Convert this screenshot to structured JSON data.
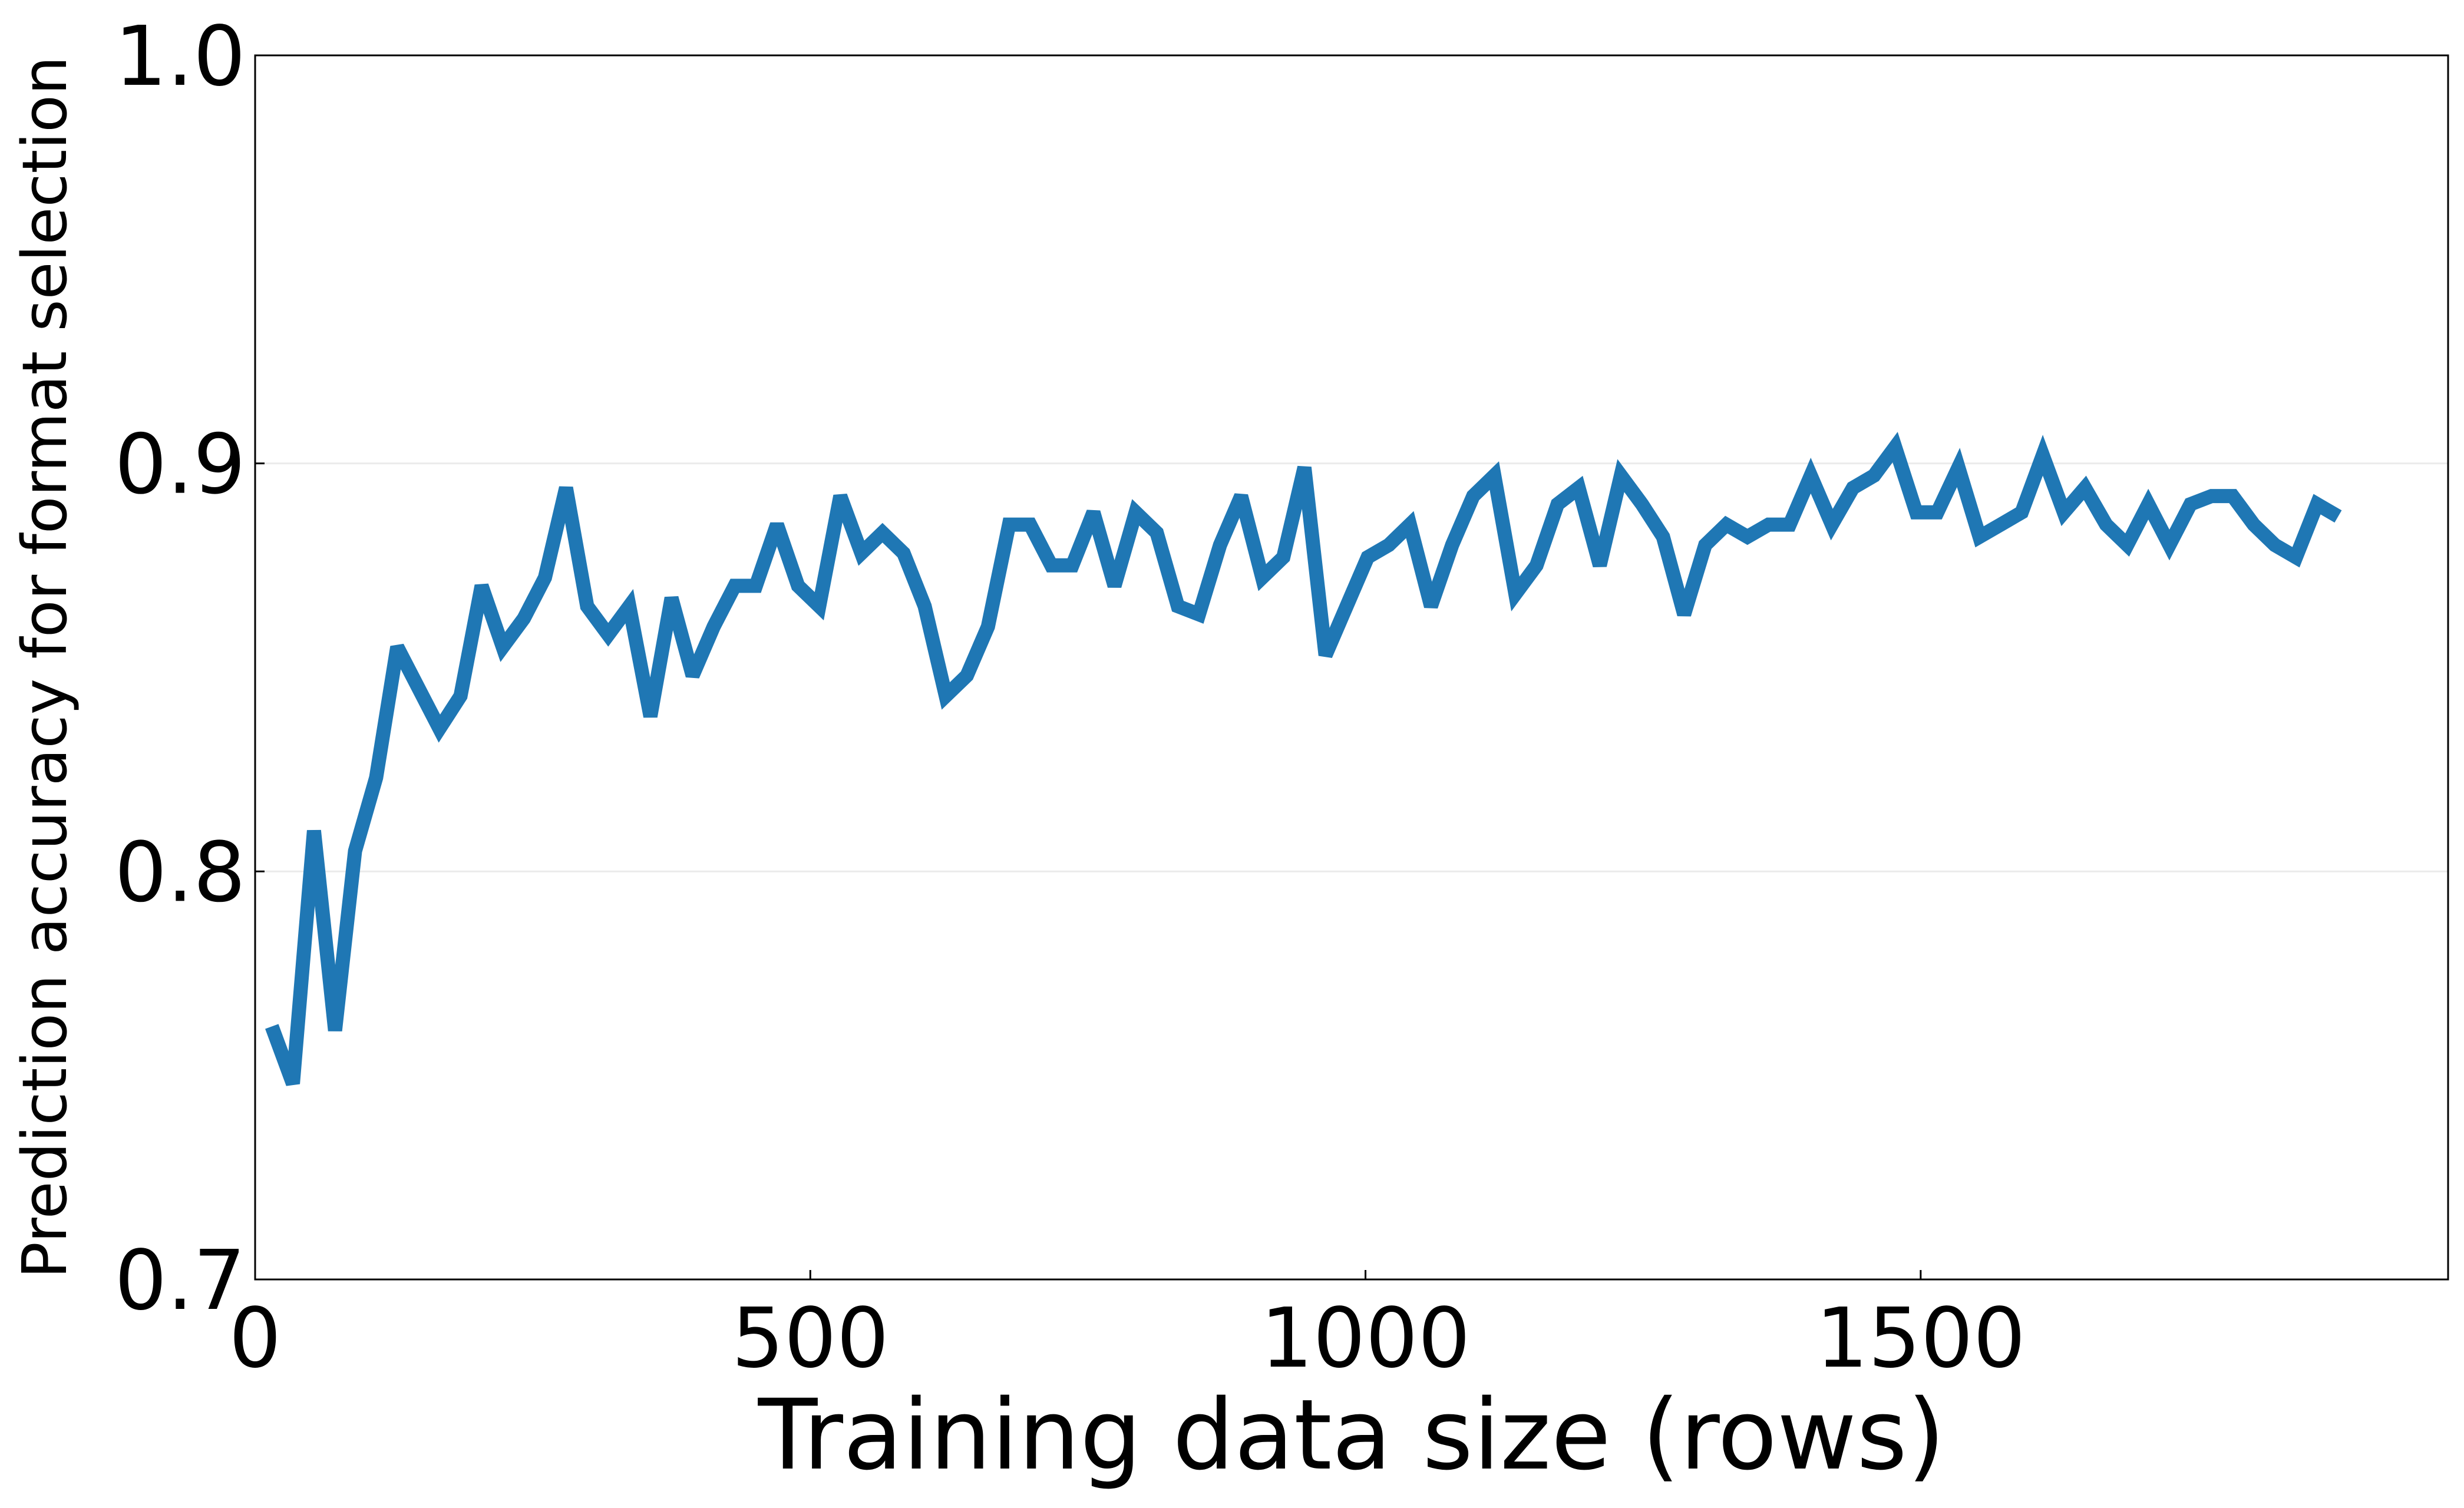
{
  "chart_data": {
    "type": "line",
    "title": "",
    "xlabel": "Training data size (rows)",
    "ylabel": "Prediction accuracy for format selection",
    "xlim": [
      0,
      1975
    ],
    "ylim": [
      0.7,
      1.0
    ],
    "x_ticks": [
      0,
      500,
      1000,
      1500
    ],
    "x_tick_labels": [
      "0",
      "500",
      "1000",
      "1500"
    ],
    "y_ticks": [
      0.7,
      0.8,
      0.9,
      1.0
    ],
    "y_tick_labels": [
      "0.7",
      "0.8",
      "0.9",
      "1.0"
    ],
    "grid": "horizontal",
    "legend": "none",
    "colors": {
      "line": "#1f77b4",
      "grid": "#ebebeb",
      "axis": "#000000"
    },
    "series": [
      {
        "x": [
          15,
          34,
          53,
          72,
          90,
          109,
          128,
          147,
          166,
          185,
          204,
          223,
          242,
          261,
          280,
          299,
          318,
          337,
          356,
          375,
          394,
          413,
          432,
          451,
          470,
          489,
          508,
          527,
          546,
          565,
          584,
          603,
          622,
          641,
          660,
          679,
          698,
          717,
          736,
          755,
          774,
          793,
          812,
          831,
          850,
          869,
          888,
          907,
          926,
          945,
          964,
          983,
          1002,
          1021,
          1040,
          1059,
          1078,
          1097,
          1116,
          1135,
          1154,
          1173,
          1192,
          1211,
          1230,
          1249,
          1268,
          1287,
          1306,
          1325,
          1344,
          1363,
          1382,
          1401,
          1420,
          1439,
          1458,
          1477,
          1496,
          1515,
          1534,
          1553,
          1572,
          1591,
          1610,
          1629,
          1648,
          1667,
          1686,
          1705,
          1724,
          1743,
          1762,
          1781,
          1800,
          1819,
          1838,
          1857,
          1876
        ],
        "values": [
          0.762,
          0.748,
          0.81,
          0.761,
          0.805,
          0.823,
          0.855,
          0.845,
          0.835,
          0.843,
          0.87,
          0.855,
          0.862,
          0.872,
          0.894,
          0.865,
          0.858,
          0.865,
          0.838,
          0.867,
          0.848,
          0.86,
          0.87,
          0.87,
          0.885,
          0.87,
          0.865,
          0.892,
          0.878,
          0.883,
          0.878,
          0.865,
          0.843,
          0.848,
          0.86,
          0.885,
          0.885,
          0.875,
          0.875,
          0.888,
          0.87,
          0.888,
          0.883,
          0.865,
          0.863,
          0.88,
          0.892,
          0.872,
          0.877,
          0.899,
          0.853,
          0.865,
          0.877,
          0.88,
          0.885,
          0.865,
          0.88,
          0.892,
          0.897,
          0.868,
          0.875,
          0.89,
          0.894,
          0.875,
          0.897,
          0.89,
          0.882,
          0.863,
          0.88,
          0.885,
          0.882,
          0.885,
          0.885,
          0.897,
          0.885,
          0.894,
          0.897,
          0.904,
          0.888,
          0.888,
          0.899,
          0.882,
          0.885,
          0.888,
          0.902,
          0.888,
          0.894,
          0.885,
          0.88,
          0.89,
          0.88,
          0.89,
          0.892,
          0.892,
          0.885,
          0.88,
          0.877,
          0.89,
          0.887
        ]
      }
    ]
  }
}
